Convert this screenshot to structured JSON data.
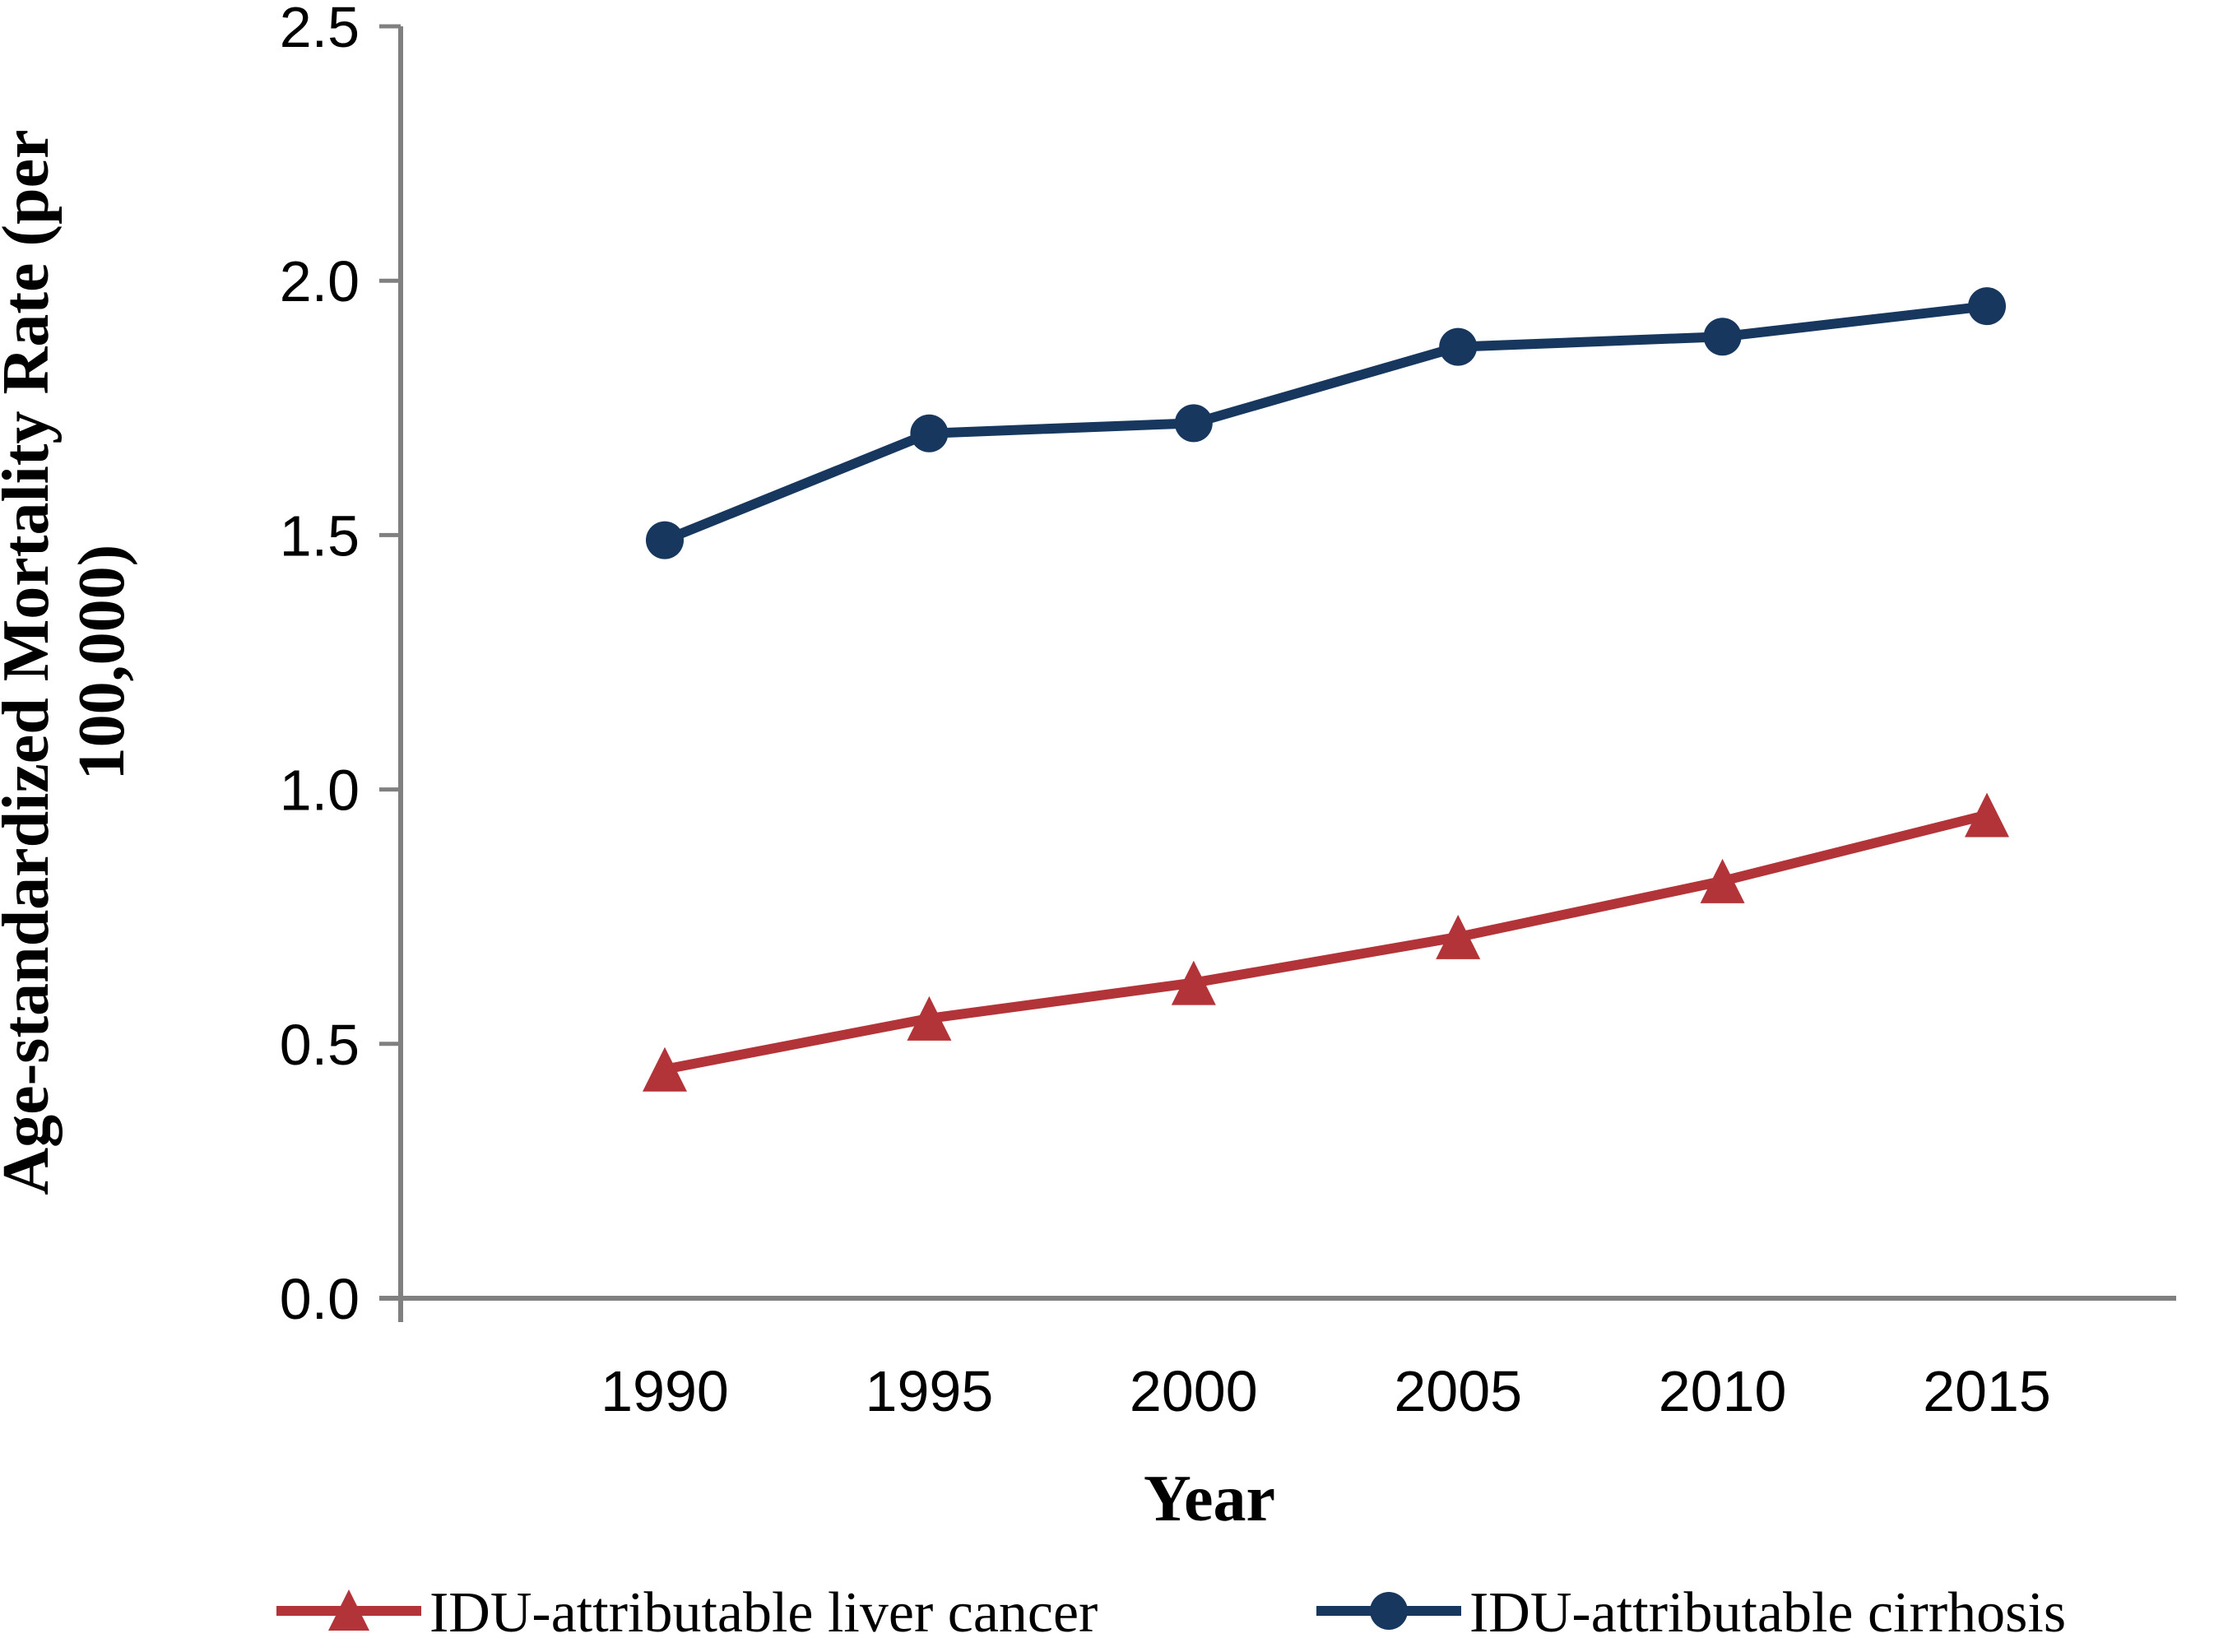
{
  "chart_data": {
    "type": "line",
    "title": "",
    "xlabel": "Year",
    "ylabel_line1": "Age-standardized Mortality Rate (per",
    "ylabel_line2": "100,000)",
    "x": [
      1990,
      1995,
      2000,
      2005,
      2010,
      2015
    ],
    "xtick_labels": [
      "1990",
      "1995",
      "2000",
      "2005",
      "2010",
      "2015"
    ],
    "ytick_values": [
      0.0,
      0.5,
      1.0,
      1.5,
      2.0,
      2.5
    ],
    "ytick_labels": [
      "0.0",
      "0.5",
      "1.0",
      "1.5",
      "2.0",
      "2.5"
    ],
    "ylim": [
      0.0,
      2.5
    ],
    "grid": false,
    "legend_position": "bottom",
    "series": [
      {
        "name": "IDU-attributable liver cancer",
        "marker": "triangle",
        "color": "#b23438",
        "values": [
          0.45,
          0.55,
          0.62,
          0.71,
          0.82,
          0.95
        ]
      },
      {
        "name": "IDU-attributable cirrhosis",
        "marker": "circle",
        "color": "#17375e",
        "values": [
          1.49,
          1.7,
          1.72,
          1.87,
          1.89,
          1.95
        ]
      }
    ],
    "axis_color": "#808080",
    "text_color": "#000000",
    "background": "#ffffff"
  }
}
